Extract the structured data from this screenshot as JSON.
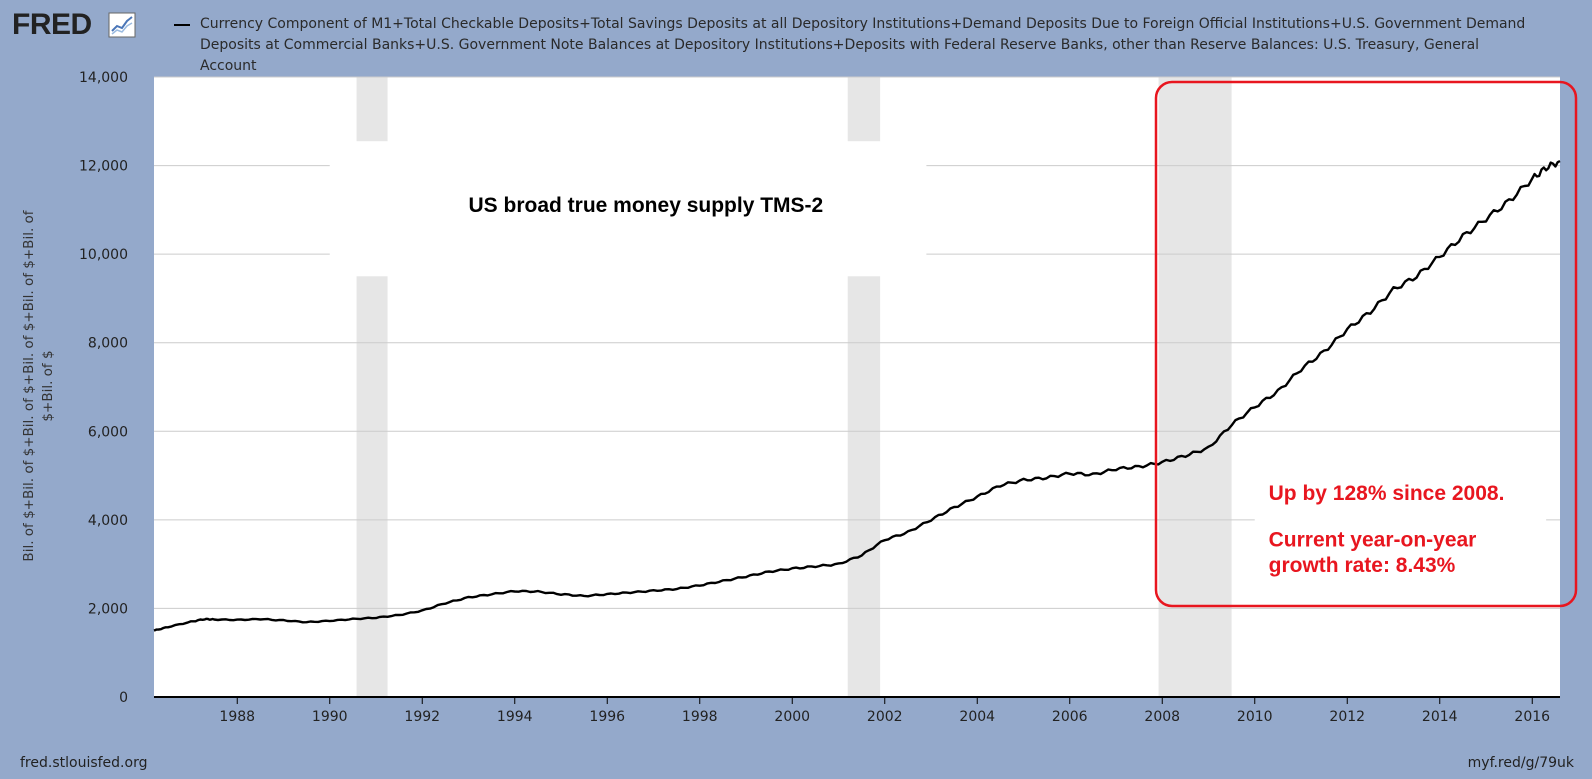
{
  "header": {
    "logo_text": "FRED",
    "logo_icon": "fred-chart-icon",
    "series_title": "Currency Component of M1+Total Checkable Deposits+Total Savings Deposits at all Depository Institutions+Demand Deposits Due to Foreign Official Institutions+U.S. Government Demand Deposits at Commercial Banks+U.S. Government Note Balances at Depository Institutions+Deposits with Federal Reserve Banks, other than Reserve Balances: U.S. Treasury, General Account"
  },
  "footer": {
    "source": "fred.stlouisfed.org",
    "short_link": "myf.red/g/79uk"
  },
  "colors": {
    "background": "#94a9cb",
    "plot": "#ffffff",
    "grid": "#cccccc",
    "recession": "#e6e6e6",
    "line": "#000000",
    "annotation_red": "#e8161f"
  },
  "chart_data": {
    "type": "line",
    "title": "",
    "xlabel": "",
    "ylabel": "Bil. of $+Bil. of $+Bil. of $+Bil. of $+Bil. of $+Bil. of $+Bil. of $",
    "xlim": [
      1986.2,
      2016.6
    ],
    "ylim": [
      0,
      14000
    ],
    "y_ticks": [
      "0",
      "2,000",
      "4,000",
      "6,000",
      "8,000",
      "10,000",
      "12,000",
      "14,000"
    ],
    "y_tick_values": [
      0,
      2000,
      4000,
      6000,
      8000,
      10000,
      12000,
      14000
    ],
    "x_ticks": [
      "1988",
      "1990",
      "1992",
      "1994",
      "1996",
      "1998",
      "2000",
      "2002",
      "2004",
      "2006",
      "2008",
      "2010",
      "2012",
      "2014",
      "2016"
    ],
    "x_tick_values": [
      1988,
      1990,
      1992,
      1994,
      1996,
      1998,
      2000,
      2002,
      2004,
      2006,
      2008,
      2010,
      2012,
      2014,
      2016
    ],
    "grid": true,
    "legend_position": "top",
    "recessions": [
      {
        "start": 1990.58,
        "end": 1991.25
      },
      {
        "start": 2001.2,
        "end": 2001.9
      },
      {
        "start": 2007.92,
        "end": 2009.5
      }
    ],
    "series": [
      {
        "name": "Currency Component of M1+Total Checkable Deposits+Total Savings Deposits at all Depository Institutions+Demand Deposits Due to Foreign Official Institutions+U.S. Government Demand Deposits at Commercial Banks+U.S. Government Note Balances at Depository Institutions+Deposits with Federal Reserve Banks, other than Reserve Balances: U.S. Treasury, General Account",
        "x": [
          1986.2,
          1986.5,
          1987.0,
          1987.3,
          1987.5,
          1988.0,
          1988.5,
          1989.0,
          1989.5,
          1990.0,
          1990.5,
          1991.0,
          1991.5,
          1992.0,
          1992.5,
          1993.0,
          1993.5,
          1994.0,
          1994.5,
          1995.0,
          1995.5,
          1996.0,
          1996.5,
          1997.0,
          1997.5,
          1998.0,
          1998.5,
          1999.0,
          1999.5,
          2000.0,
          2000.5,
          2001.0,
          2001.5,
          2002.0,
          2002.5,
          2003.0,
          2003.5,
          2004.0,
          2004.5,
          2005.0,
          2005.5,
          2006.0,
          2006.5,
          2007.0,
          2007.5,
          2008.0,
          2008.5,
          2009.0,
          2009.5,
          2010.0,
          2010.5,
          2011.0,
          2011.5,
          2012.0,
          2012.5,
          2013.0,
          2013.5,
          2014.0,
          2014.5,
          2015.0,
          2015.5,
          2016.0,
          2016.3,
          2016.6
        ],
        "values": [
          1500,
          1580,
          1700,
          1760,
          1750,
          1740,
          1760,
          1730,
          1690,
          1720,
          1760,
          1790,
          1850,
          1950,
          2120,
          2250,
          2320,
          2390,
          2380,
          2320,
          2280,
          2320,
          2360,
          2400,
          2440,
          2520,
          2620,
          2720,
          2830,
          2900,
          2950,
          3000,
          3200,
          3550,
          3720,
          4000,
          4280,
          4520,
          4780,
          4900,
          4950,
          5050,
          5020,
          5150,
          5200,
          5300,
          5450,
          5620,
          6150,
          6550,
          6900,
          7400,
          7800,
          8300,
          8700,
          9200,
          9500,
          9950,
          10400,
          10800,
          11200,
          11700,
          11950,
          12100
        ]
      }
    ],
    "annotations": [
      {
        "text": "US broad true money supply TMS-2",
        "x": 1993.0,
        "y": 10950,
        "color": "#000000"
      },
      {
        "text": "Up by 128% since  2008.",
        "x": 2010.3,
        "y": 4450,
        "color": "#e8161f"
      },
      {
        "text": "Current year-on-year",
        "x": 2010.3,
        "y": 3400,
        "color": "#e8161f"
      },
      {
        "text": "growth rate: 8.43%",
        "x": 2010.3,
        "y": 2820,
        "color": "#e8161f"
      }
    ]
  }
}
